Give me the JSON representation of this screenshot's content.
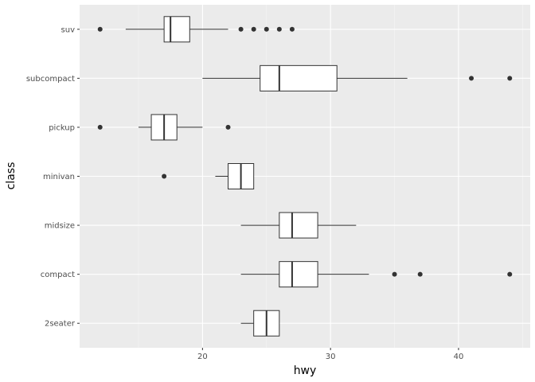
{
  "chart_data": {
    "type": "boxplot",
    "orientation": "horizontal",
    "xlabel": "hwy",
    "ylabel": "class",
    "xlim": [
      10.4,
      45.6
    ],
    "x_ticks": [
      20,
      30,
      40
    ],
    "categories": [
      "2seater",
      "compact",
      "midsize",
      "minivan",
      "pickup",
      "subcompact",
      "suv"
    ],
    "boxes": [
      {
        "category": "2seater",
        "whisker_low": 23,
        "q1": 24,
        "median": 25,
        "q3": 26,
        "whisker_high": 26,
        "outliers": []
      },
      {
        "category": "compact",
        "whisker_low": 23,
        "q1": 26,
        "median": 27,
        "q3": 29,
        "whisker_high": 33,
        "outliers": [
          35,
          37,
          44
        ]
      },
      {
        "category": "midsize",
        "whisker_low": 23,
        "q1": 26,
        "median": 27,
        "q3": 29,
        "whisker_high": 32,
        "outliers": []
      },
      {
        "category": "minivan",
        "whisker_low": 21,
        "q1": 22,
        "median": 23,
        "q3": 24,
        "whisker_high": 24,
        "outliers": [
          17
        ]
      },
      {
        "category": "pickup",
        "whisker_low": 15,
        "q1": 16,
        "median": 17,
        "q3": 18,
        "whisker_high": 20,
        "outliers": [
          12,
          22
        ]
      },
      {
        "category": "subcompact",
        "whisker_low": 20,
        "q1": 24.5,
        "median": 26,
        "q3": 30.5,
        "whisker_high": 36,
        "outliers": [
          41,
          44
        ]
      },
      {
        "category": "suv",
        "whisker_low": 14,
        "q1": 17,
        "median": 17.5,
        "q3": 19,
        "whisker_high": 22,
        "outliers": [
          12,
          23,
          24,
          25,
          26,
          27
        ]
      }
    ],
    "grid": true,
    "colors": {
      "panel_background": "#ebebeb",
      "grid_major": "#ffffff",
      "grid_minor": "#f5f5f5",
      "box_fill": "#ffffff",
      "box_line": "#333333",
      "outlier": "#333333",
      "tick": "#333333"
    }
  }
}
